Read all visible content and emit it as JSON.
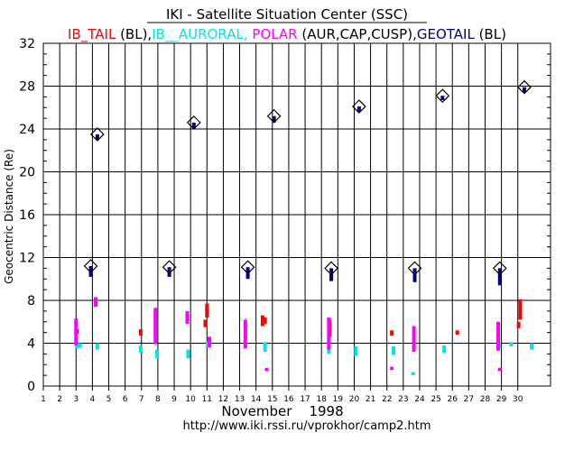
{
  "title": "IKI - Satellite Situation Center (SSC)",
  "legend_segments": [
    {
      "text": "IB_TAIL",
      "color": "#ff0000"
    },
    {
      "text": " (BL),",
      "color": "#000000"
    },
    {
      "text": "IB__AURORAL,",
      "color": "#00e5e5"
    },
    {
      "text": " POLAR",
      "color": "#ff00ff"
    },
    {
      "text": " (AUR,CAP,CUSP),",
      "color": "#000000"
    },
    {
      "text": "GEOTAIL",
      "color": "#000080"
    },
    {
      "text": " (BL)",
      "color": "#000000"
    }
  ],
  "chart_data": {
    "type": "scatter",
    "title": "IKI - Satellite Situation Center (SSC)",
    "ylabel": "Geocentric Distance (Re)",
    "xlabel": "November    1998",
    "url": "http://www.iki.rssi.ru/vprokhor/camp2.htm",
    "x_ticks": [
      "1",
      "2",
      "3",
      "4",
      "5",
      "6",
      "7",
      "8",
      "9",
      "10",
      "11",
      "12",
      "13",
      "14",
      "15",
      "16",
      "17",
      "18",
      "19",
      "20",
      "21",
      "22",
      "23",
      "24",
      "25",
      "26",
      "27",
      "28",
      "29",
      "30"
    ],
    "y_ticks": [
      "0",
      "4",
      "8",
      "12",
      "16",
      "20",
      "24",
      "28",
      "32"
    ],
    "xlim": [
      1,
      32
    ],
    "ylim": [
      0,
      32
    ],
    "grid": true,
    "colors": {
      "IB_TAIL": "#ff0000",
      "IB_AURORAL": "#00e5e5",
      "POLAR": "#ff00ff",
      "GEOTAIL": "#000080"
    },
    "series": [
      {
        "name": "GEOTAIL",
        "marker": "diamond",
        "points": [
          {
            "x": 3.9,
            "y": 11.2,
            "y2": 10.2
          },
          {
            "x": 4.3,
            "y": 23.5,
            "y2": 23.0
          },
          {
            "x": 8.7,
            "y": 11.1,
            "y2": 10.2
          },
          {
            "x": 10.2,
            "y": 24.6,
            "y2": 24.0
          },
          {
            "x": 13.5,
            "y": 11.1,
            "y2": 10.0
          },
          {
            "x": 15.1,
            "y": 25.2,
            "y2": 24.6
          },
          {
            "x": 18.6,
            "y": 11.0,
            "y2": 9.8
          },
          {
            "x": 20.3,
            "y": 26.1,
            "y2": 25.6
          },
          {
            "x": 23.7,
            "y": 11.0,
            "y2": 9.7
          },
          {
            "x": 25.4,
            "y": 27.1,
            "y2": 26.7
          },
          {
            "x": 28.9,
            "y": 11.0,
            "y2": 9.4
          },
          {
            "x": 30.4,
            "y": 27.9,
            "y2": 27.4
          }
        ]
      },
      {
        "name": "IB_TAIL",
        "points": [
          {
            "x": 3.05,
            "y": 4.9,
            "y2": 5.3
          },
          {
            "x": 6.95,
            "y": 4.7,
            "y2": 5.3
          },
          {
            "x": 10.9,
            "y": 5.5,
            "y2": 6.2
          },
          {
            "x": 11.0,
            "y": 6.4,
            "y2": 7.7
          },
          {
            "x": 14.4,
            "y": 5.6,
            "y2": 6.6
          },
          {
            "x": 14.55,
            "y": 5.8,
            "y2": 6.4
          },
          {
            "x": 18.5,
            "y": 4.6,
            "y2": 6.2
          },
          {
            "x": 22.3,
            "y": 4.7,
            "y2": 5.2
          },
          {
            "x": 26.3,
            "y": 4.8,
            "y2": 5.2
          },
          {
            "x": 30.05,
            "y": 5.4,
            "y2": 6.0
          },
          {
            "x": 30.15,
            "y": 6.2,
            "y2": 8.1
          }
        ]
      },
      {
        "name": "IB_AURORAL",
        "points": [
          {
            "x": 3.05,
            "y": 3.5,
            "y2": 4.2
          },
          {
            "x": 3.25,
            "y": 3.6,
            "y2": 4.0
          },
          {
            "x": 4.3,
            "y": 3.4,
            "y2": 4.0
          },
          {
            "x": 6.95,
            "y": 3.1,
            "y2": 3.8
          },
          {
            "x": 7.95,
            "y": 2.6,
            "y2": 3.4
          },
          {
            "x": 9.85,
            "y": 2.6,
            "y2": 3.4
          },
          {
            "x": 11.05,
            "y": 3.6,
            "y2": 4.2
          },
          {
            "x": 14.55,
            "y": 3.2,
            "y2": 4.1
          },
          {
            "x": 18.45,
            "y": 3.0,
            "y2": 3.8
          },
          {
            "x": 20.1,
            "y": 2.8,
            "y2": 3.7
          },
          {
            "x": 22.4,
            "y": 2.9,
            "y2": 3.7
          },
          {
            "x": 23.6,
            "y": 1.0,
            "y2": 1.3
          },
          {
            "x": 25.5,
            "y": 3.1,
            "y2": 3.8
          },
          {
            "x": 28.85,
            "y": 3.5,
            "y2": 4.1
          },
          {
            "x": 29.6,
            "y": 3.7,
            "y2": 4.1
          },
          {
            "x": 30.85,
            "y": 3.4,
            "y2": 4.0
          }
        ]
      },
      {
        "name": "POLAR",
        "points": [
          {
            "x": 3.0,
            "y": 3.8,
            "y2": 6.3
          },
          {
            "x": 4.2,
            "y": 7.4,
            "y2": 8.3
          },
          {
            "x": 7.85,
            "y": 3.9,
            "y2": 7.3
          },
          {
            "x": 9.8,
            "y": 5.8,
            "y2": 7.0
          },
          {
            "x": 11.15,
            "y": 3.6,
            "y2": 4.6
          },
          {
            "x": 13.35,
            "y": 3.5,
            "y2": 6.2
          },
          {
            "x": 14.65,
            "y": 1.4,
            "y2": 1.7
          },
          {
            "x": 18.45,
            "y": 3.4,
            "y2": 6.4
          },
          {
            "x": 22.3,
            "y": 1.5,
            "y2": 1.8
          },
          {
            "x": 23.65,
            "y": 3.2,
            "y2": 5.6
          },
          {
            "x": 28.8,
            "y": 3.3,
            "y2": 6.0
          },
          {
            "x": 28.9,
            "y": 1.4,
            "y2": 1.7
          }
        ]
      }
    ]
  }
}
